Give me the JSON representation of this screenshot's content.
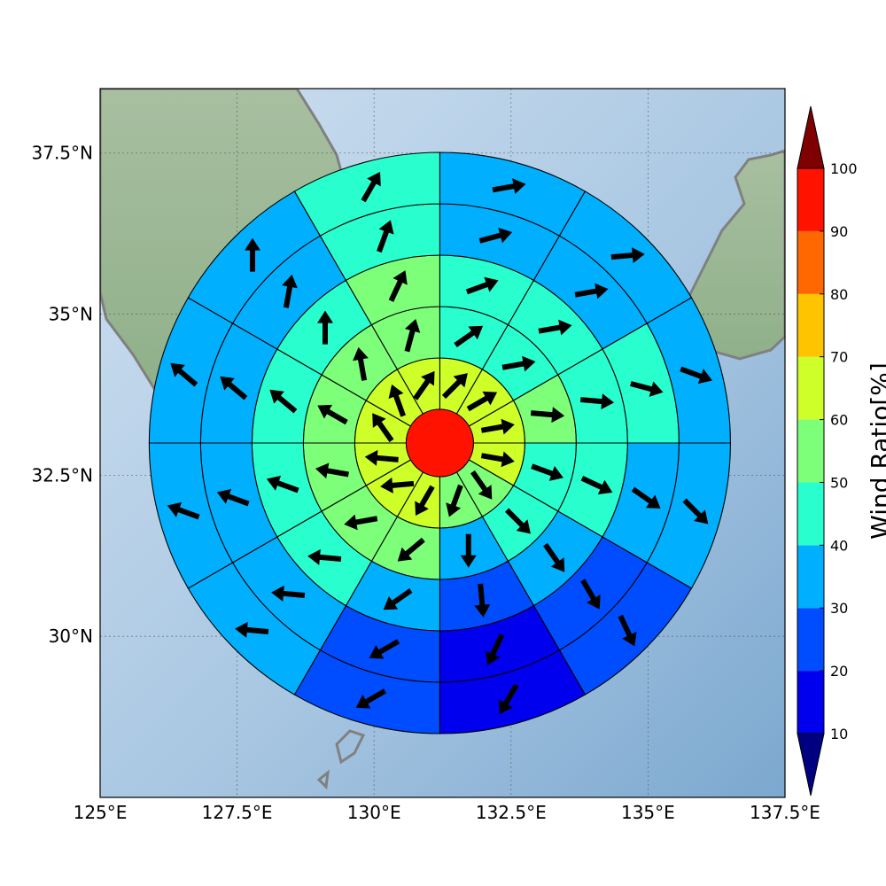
{
  "map": {
    "lon_range": [
      125,
      137.5
    ],
    "lat_range": [
      27.5,
      38.5
    ],
    "gridlines": true,
    "x_ticks": [
      {
        "lon": 125,
        "label": "125°E"
      },
      {
        "lon": 127.5,
        "label": "127.5°E"
      },
      {
        "lon": 130,
        "label": "130°E"
      },
      {
        "lon": 132.5,
        "label": "132.5°E"
      },
      {
        "lon": 135,
        "label": "135°E"
      },
      {
        "lon": 137.5,
        "label": "137.5°E"
      }
    ],
    "y_ticks": [
      {
        "lat": 37.5,
        "label": "37.5°N"
      },
      {
        "lat": 35,
        "label": "35°N"
      },
      {
        "lat": 32.5,
        "label": "32.5°N"
      },
      {
        "lat": 30,
        "label": "30°N"
      }
    ],
    "center": {
      "lon": 131.2,
      "lat": 33.0
    }
  },
  "colorbar": {
    "label": "Wind Ratio[%]",
    "ticks": [
      "10",
      "20",
      "30",
      "40",
      "50",
      "60",
      "70",
      "80",
      "90",
      "100"
    ],
    "under_color": "#000080",
    "over_color": "#7f0000",
    "bins": [
      {
        "from": 10,
        "to": 20,
        "color": "#0000ee"
      },
      {
        "from": 20,
        "to": 30,
        "color": "#004cff"
      },
      {
        "from": 30,
        "to": 40,
        "color": "#00b0ff"
      },
      {
        "from": 40,
        "to": 50,
        "color": "#29ffce"
      },
      {
        "from": 50,
        "to": 60,
        "color": "#7dff7a"
      },
      {
        "from": 60,
        "to": 70,
        "color": "#ceff29"
      },
      {
        "from": 70,
        "to": 80,
        "color": "#ffc400"
      },
      {
        "from": 80,
        "to": 90,
        "color": "#ff6800"
      },
      {
        "from": 90,
        "to": 100,
        "color": "#ff1200"
      }
    ]
  },
  "chart_data": {
    "type": "heatmap",
    "title": "",
    "xlabel": "",
    "ylabel": "",
    "value_label": "Wind Ratio[%]",
    "center_value": 95,
    "sector_width_deg": 30,
    "sector_start_azimuths_deg": [
      0,
      30,
      60,
      90,
      120,
      150,
      180,
      210,
      240,
      270,
      300,
      330
    ],
    "rings": [
      {
        "ring": 1,
        "values": [
          65,
          65,
          65,
          65,
          55,
          55,
          65,
          65,
          65,
          65,
          65,
          65
        ],
        "wind_dir_deg": [
          45,
          60,
          80,
          100,
          145,
          200,
          210,
          265,
          275,
          325,
          340,
          35
        ]
      },
      {
        "ring": 2,
        "values": [
          45,
          45,
          55,
          45,
          45,
          35,
          55,
          55,
          55,
          55,
          55,
          55
        ],
        "wind_dir_deg": [
          55,
          80,
          95,
          110,
          135,
          180,
          230,
          260,
          280,
          300,
          350,
          15
        ]
      },
      {
        "ring": 3,
        "values": [
          45,
          45,
          45,
          45,
          35,
          25,
          35,
          45,
          45,
          45,
          45,
          55
        ],
        "wind_dir_deg": [
          70,
          80,
          95,
          115,
          145,
          175,
          235,
          275,
          290,
          310,
          360,
          25
        ]
      },
      {
        "ring": 4,
        "values": [
          35,
          35,
          45,
          35,
          25,
          15,
          25,
          35,
          35,
          35,
          35,
          45
        ],
        "wind_dir_deg": [
          75,
          80,
          105,
          125,
          150,
          205,
          240,
          275,
          290,
          310,
          10,
          20
        ]
      },
      {
        "ring": 5,
        "values": [
          35,
          35,
          35,
          35,
          25,
          15,
          25,
          35,
          35,
          35,
          35,
          45
        ],
        "wind_dir_deg": [
          80,
          85,
          110,
          135,
          155,
          210,
          240,
          275,
          290,
          310,
          0,
          30
        ]
      }
    ]
  }
}
